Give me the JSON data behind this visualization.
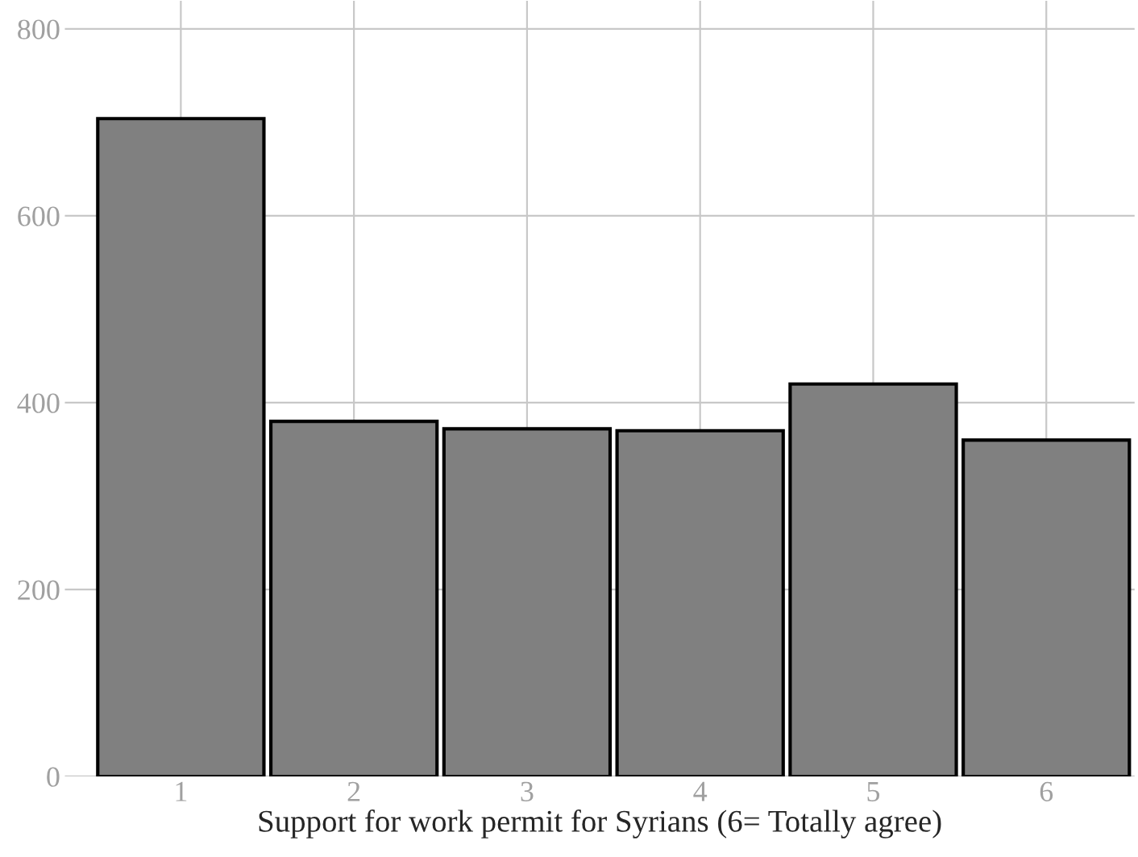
{
  "chart_data": {
    "type": "bar",
    "xlabel": "Support for work permit for Syrians (6= Totally agree)",
    "categories": [
      "1",
      "2",
      "3",
      "4",
      "5",
      "6"
    ],
    "values": [
      704,
      380,
      372,
      370,
      420,
      360
    ],
    "color": "#808080",
    "ylim": [
      0,
      830
    ],
    "yticks": [
      0,
      200,
      400,
      600,
      800
    ],
    "grid": true
  }
}
